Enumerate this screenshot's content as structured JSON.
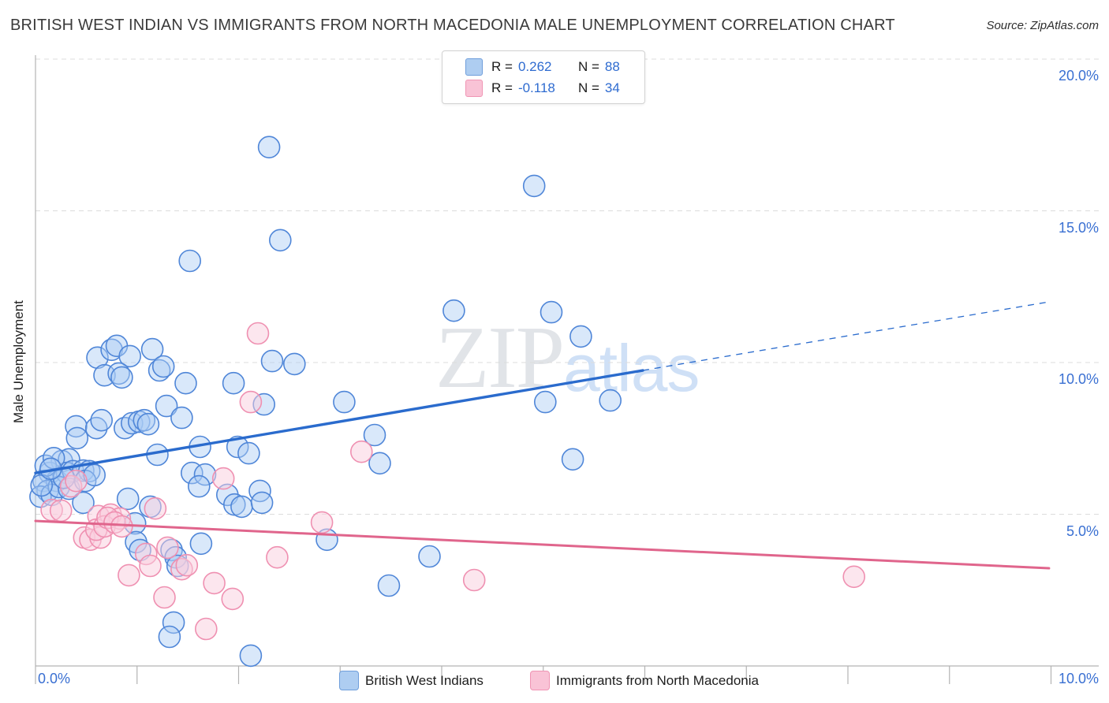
{
  "page": {
    "title": "BRITISH WEST INDIAN VS IMMIGRANTS FROM NORTH MACEDONIA MALE UNEMPLOYMENT CORRELATION CHART",
    "source": "Source: ZipAtlas.com"
  },
  "watermark": {
    "zip": "ZIP",
    "atlas": "atlas"
  },
  "stats_legend": {
    "rows": [
      {
        "r_label": "R =",
        "r_value": "0.262",
        "n_label": "N =",
        "n_value": "88",
        "swatch_fill": "#aecdf1",
        "swatch_stroke": "#6f9edb"
      },
      {
        "r_label": "R =",
        "r_value": "-0.118",
        "n_label": "N =",
        "n_value": "34",
        "swatch_fill": "#f9c3d6",
        "swatch_stroke": "#f095b4"
      }
    ]
  },
  "bottom_legend": {
    "items": [
      {
        "label": "British West Indians",
        "swatch_fill": "#aecdf1",
        "swatch_stroke": "#6f9edb"
      },
      {
        "label": "Immigrants from North Macedonia",
        "swatch_fill": "#f9c3d6",
        "swatch_stroke": "#f095b4"
      }
    ]
  },
  "chart_data": {
    "type": "scatter",
    "title": "BRITISH WEST INDIAN VS IMMIGRANTS FROM NORTH MACEDONIA MALE UNEMPLOYMENT CORRELATION CHART",
    "xlabel": "",
    "ylabel": "Male Unemployment",
    "x_range_pct": [
      0,
      10.47
    ],
    "y_range_pct": [
      0,
      20.13
    ],
    "x_ticks_pct": [
      0,
      1,
      2,
      3,
      4,
      5,
      6,
      7,
      8,
      9,
      10
    ],
    "x_tick_labels": {
      "left": "0.0%",
      "right": "10.0%"
    },
    "y_gridlines": [
      {
        "value": 5,
        "label": "5.0%"
      },
      {
        "value": 10,
        "label": "10.0%"
      },
      {
        "value": 15,
        "label": "15.0%"
      },
      {
        "value": 20,
        "label": "20.0%"
      }
    ],
    "grid": true,
    "legend_position": "bottom",
    "colors": {
      "grid": "#dcdcdc",
      "axis": "#b3b3b3",
      "tick_label": "#3a70d2",
      "blue_trend": "#2a6bcd",
      "pink_trend": "#e0658c"
    },
    "series": [
      {
        "name": "British West Indians",
        "R": 0.262,
        "N": 88,
        "marker_fill": "rgba(170,204,244,0.45)",
        "marker_stroke": "#4f86d8",
        "points": [
          [
            2.3,
            17.1
          ],
          [
            4.91,
            15.82
          ],
          [
            2.41,
            14.03
          ],
          [
            1.52,
            13.35
          ],
          [
            4.12,
            11.71
          ],
          [
            5.08,
            11.66
          ],
          [
            5.37,
            10.86
          ],
          [
            0.61,
            10.16
          ],
          [
            0.75,
            10.42
          ],
          [
            0.8,
            10.55
          ],
          [
            0.93,
            10.21
          ],
          [
            1.15,
            10.44
          ],
          [
            2.33,
            10.05
          ],
          [
            2.55,
            9.95
          ],
          [
            0.68,
            9.58
          ],
          [
            0.82,
            9.64
          ],
          [
            0.85,
            9.51
          ],
          [
            1.22,
            9.74
          ],
          [
            1.26,
            9.87
          ],
          [
            1.48,
            9.32
          ],
          [
            1.95,
            9.32
          ],
          [
            2.25,
            8.62
          ],
          [
            3.04,
            8.7
          ],
          [
            5.02,
            8.7
          ],
          [
            5.66,
            8.75
          ],
          [
            0.4,
            7.9
          ],
          [
            0.41,
            7.51
          ],
          [
            0.6,
            7.84
          ],
          [
            0.65,
            8.1
          ],
          [
            0.88,
            7.84
          ],
          [
            0.95,
            8.0
          ],
          [
            1.02,
            8.05
          ],
          [
            1.07,
            8.1
          ],
          [
            1.11,
            7.97
          ],
          [
            1.29,
            8.57
          ],
          [
            1.44,
            8.18
          ],
          [
            1.2,
            6.96
          ],
          [
            1.62,
            7.22
          ],
          [
            1.99,
            7.22
          ],
          [
            2.1,
            7.01
          ],
          [
            3.34,
            7.61
          ],
          [
            3.39,
            6.68
          ],
          [
            5.29,
            6.81
          ],
          [
            0.26,
            6.75
          ],
          [
            0.33,
            6.81
          ],
          [
            0.14,
            6.36
          ],
          [
            0.08,
            6.1
          ],
          [
            0.21,
            6.1
          ],
          [
            0.31,
            6.36
          ],
          [
            0.37,
            6.42
          ],
          [
            0.47,
            6.44
          ],
          [
            0.53,
            6.42
          ],
          [
            0.12,
            5.77
          ],
          [
            0.05,
            5.58
          ],
          [
            0.16,
            5.64
          ],
          [
            0.23,
            5.9
          ],
          [
            0.33,
            5.84
          ],
          [
            0.49,
            6.1
          ],
          [
            0.58,
            6.29
          ],
          [
            0.1,
            6.6
          ],
          [
            0.18,
            6.85
          ],
          [
            0.28,
            6.2
          ],
          [
            0.06,
            5.95
          ],
          [
            0.15,
            6.5
          ],
          [
            0.47,
            5.38
          ],
          [
            0.91,
            5.51
          ],
          [
            1.13,
            5.25
          ],
          [
            1.54,
            6.36
          ],
          [
            1.67,
            6.31
          ],
          [
            1.61,
            5.92
          ],
          [
            1.89,
            5.64
          ],
          [
            1.96,
            5.32
          ],
          [
            2.03,
            5.25
          ],
          [
            2.21,
            5.77
          ],
          [
            2.23,
            5.38
          ],
          [
            0.98,
            4.7
          ],
          [
            0.99,
            4.08
          ],
          [
            1.03,
            3.82
          ],
          [
            1.34,
            3.82
          ],
          [
            1.38,
            3.58
          ],
          [
            1.4,
            3.3
          ],
          [
            1.63,
            4.03
          ],
          [
            2.87,
            4.16
          ],
          [
            3.88,
            3.61
          ],
          [
            3.48,
            2.65
          ],
          [
            1.36,
            1.43
          ],
          [
            1.32,
            0.96
          ],
          [
            2.12,
            0.34
          ]
        ]
      },
      {
        "name": "Immigrants from North Macedonia",
        "R": -0.118,
        "N": 34,
        "marker_fill": "rgba(250,205,221,0.5)",
        "marker_stroke": "#ef90b1",
        "points": [
          [
            2.19,
            10.96
          ],
          [
            2.12,
            8.7
          ],
          [
            3.21,
            7.06
          ],
          [
            1.85,
            6.18
          ],
          [
            0.35,
            5.92
          ],
          [
            0.4,
            6.1
          ],
          [
            0.16,
            5.14
          ],
          [
            0.25,
            5.12
          ],
          [
            0.62,
            4.94
          ],
          [
            0.74,
            4.99
          ],
          [
            0.83,
            4.86
          ],
          [
            1.18,
            5.19
          ],
          [
            0.48,
            4.23
          ],
          [
            0.54,
            4.16
          ],
          [
            0.64,
            4.23
          ],
          [
            0.6,
            4.49
          ],
          [
            0.68,
            4.6
          ],
          [
            0.71,
            4.88
          ],
          [
            0.78,
            4.73
          ],
          [
            0.85,
            4.6
          ],
          [
            1.09,
            3.69
          ],
          [
            1.13,
            3.3
          ],
          [
            1.3,
            3.9
          ],
          [
            1.44,
            3.19
          ],
          [
            1.49,
            3.32
          ],
          [
            0.92,
            2.99
          ],
          [
            1.27,
            2.26
          ],
          [
            1.76,
            2.73
          ],
          [
            1.94,
            2.21
          ],
          [
            1.68,
            1.22
          ],
          [
            2.38,
            3.58
          ],
          [
            2.82,
            4.73
          ],
          [
            4.32,
            2.83
          ],
          [
            8.06,
            2.94
          ]
        ]
      }
    ],
    "trendlines": [
      {
        "series": "British West Indians",
        "color": "#2a6bcd",
        "width": 3.4,
        "solid": [
          [
            0,
            6.36
          ],
          [
            5.98,
            9.74
          ]
        ],
        "dashed": [
          [
            5.98,
            9.74
          ],
          [
            9.98,
            12.0
          ]
        ]
      },
      {
        "series": "Immigrants from North Macedonia",
        "color": "#e0658c",
        "width": 3,
        "solid": [
          [
            0,
            4.78
          ],
          [
            9.98,
            3.22
          ]
        ]
      }
    ]
  }
}
